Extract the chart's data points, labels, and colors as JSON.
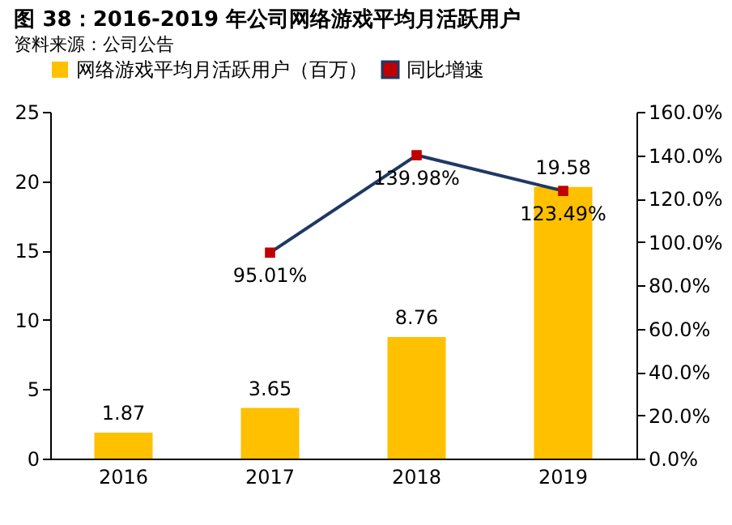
{
  "chart_data": {
    "type": "bar",
    "title": "图 38：2016-2019 年公司网络游戏平均月活跃用户",
    "categories": [
      "2016",
      "2017",
      "2018",
      "2019"
    ],
    "series": [
      {
        "name": "网络游戏平均月活跃用户（百万）",
        "color": "#ffc000",
        "values": [
          1.87,
          3.65,
          8.76,
          19.58
        ]
      },
      {
        "name": "同比增速",
        "type": "line",
        "axis": "y2",
        "color": "#1f3864",
        "colors": [
          null,
          "#c00000",
          "#c00000",
          "#c00000"
        ],
        "marker": "square",
        "values": [
          null,
          95.01,
          139.98,
          123.49
        ],
        "value_labels": [
          null,
          "95.01%",
          "139.98%",
          "123.49%"
        ]
      }
    ],
    "data_labels": true,
    "ylim": [
      0,
      25
    ],
    "yticks": [
      0,
      5,
      10,
      15,
      20,
      25
    ],
    "y2lim": [
      0,
      160
    ],
    "y2ticks": [
      {
        "value": 0,
        "label": "0.0%"
      },
      {
        "value": 20,
        "label": "20.0%"
      },
      {
        "value": 40,
        "label": "40.0%"
      },
      {
        "value": 60,
        "label": "60.0%"
      },
      {
        "value": 80,
        "label": "80.0%"
      },
      {
        "value": 100,
        "label": "100.0%"
      },
      {
        "value": 120,
        "label": "120.0%"
      },
      {
        "value": 140,
        "label": "140.0%"
      },
      {
        "value": 160,
        "label": "160.0%"
      }
    ],
    "grid": false,
    "legend": "top",
    "annotations": [
      "资料来源：公司公告"
    ]
  }
}
